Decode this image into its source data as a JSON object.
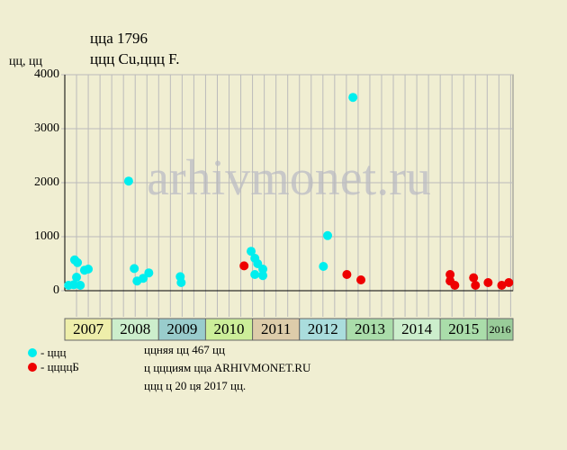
{
  "chart_data": {
    "type": "scatter",
    "title": "ццa 1796",
    "subtitle": "ццц Cu,ццц F.",
    "y_label": "цц, цц",
    "watermark": "arhivmonet.ru",
    "ylim": [
      0,
      4000
    ],
    "yticks": [
      0,
      1000,
      2000,
      3000,
      4000
    ],
    "xlim": [
      2007,
      2016.55
    ],
    "xticks": [
      2007.25,
      2007.5,
      2007.75,
      2008,
      2008.25,
      2008.5,
      2008.75,
      2009,
      2009.25,
      2009.5,
      2009.75,
      2010,
      2010.25,
      2010.5,
      2010.75,
      2011,
      2011.25,
      2011.5,
      2011.75,
      2012,
      2012.25,
      2012.5,
      2012.75,
      2013,
      2013.25,
      2013.5,
      2013.75,
      2014,
      2014.25,
      2014.5,
      2014.75,
      2015,
      2015.25,
      2015.5,
      2015.75,
      2016,
      2016.25,
      2016.5
    ],
    "grid": true,
    "years": [
      "2007",
      "2008",
      "2009",
      "2010",
      "2011",
      "2012",
      "2013",
      "2014",
      "2015",
      "2016"
    ],
    "year_starts": [
      2007,
      2008,
      2009,
      2010,
      2011,
      2012,
      2013,
      2014,
      2015,
      2016
    ],
    "year_colors": [
      "#eeeeaa",
      "#cceecc",
      "#99cccc",
      "#ccee99",
      "#ddccaa",
      "#aadddd",
      "#aaddaa",
      "#cceecc",
      "#aaddaa",
      "#99cc99"
    ],
    "series": [
      {
        "name": "- ццц",
        "color": "#00eeee",
        "x": [
          2007.08,
          2007.19,
          2007.21,
          2007.27,
          2007.25,
          2007.33,
          2007.42,
          2007.5,
          2008.36,
          2008.48,
          2008.54,
          2008.67,
          2008.79,
          2009.46,
          2009.48,
          2010.97,
          2011.05,
          2011.11,
          2011.05,
          2011.22,
          2011.22,
          2012.51,
          2012.6,
          2013.14
        ],
        "values": [
          100,
          110,
          570,
          520,
          250,
          100,
          380,
          400,
          2030,
          410,
          180,
          230,
          330,
          260,
          150,
          730,
          600,
          500,
          300,
          400,
          280,
          450,
          1020,
          3580
        ]
      },
      {
        "name": "- ццццБ",
        "color": "#ee0000",
        "x": [
          2010.82,
          2013.01,
          2013.31,
          2015.21,
          2015.21,
          2015.31,
          2015.71,
          2015.75,
          2016.02,
          2016.31,
          2016.46
        ],
        "values": [
          460,
          300,
          200,
          300,
          180,
          100,
          240,
          100,
          150,
          100,
          150
        ]
      }
    ],
    "notes": [
      "ццняя цц 467 цц",
      "ц ццциям ццa ARHIVMONET.RU",
      "ццц ц 20 ця 2017 цц."
    ]
  }
}
